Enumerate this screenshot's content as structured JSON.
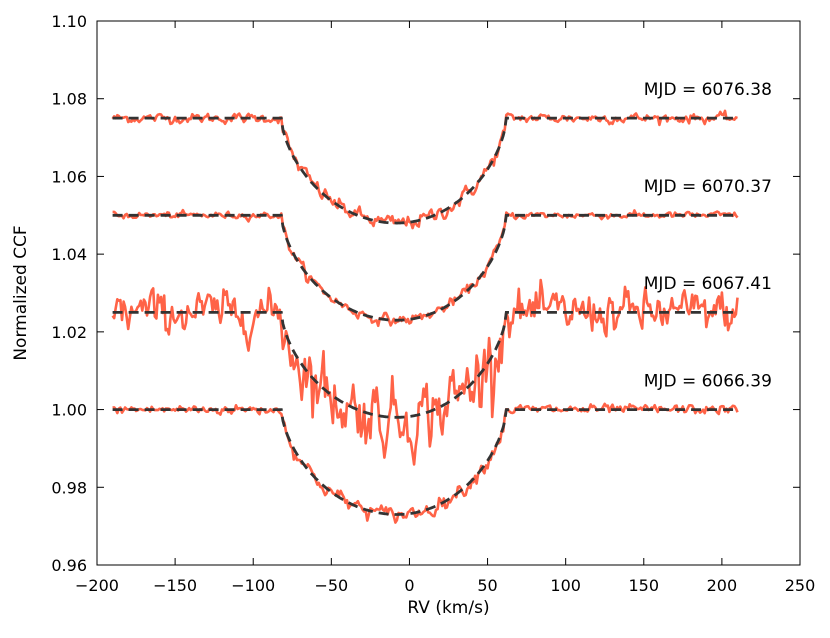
{
  "chart_data": {
    "type": "line",
    "title": "",
    "xlabel": "RV (km/s)",
    "ylabel": "Normalized CCF",
    "xlim": [
      -200,
      250
    ],
    "ylim": [
      0.96,
      1.1
    ],
    "xticks": [
      -200,
      -150,
      -100,
      -50,
      0,
      50,
      100,
      150,
      200,
      250
    ],
    "xtick_labels": [
      "−200",
      "−150",
      "−100",
      "−50",
      "0",
      "50",
      "100",
      "150",
      "200",
      "250"
    ],
    "yticks": [
      0.96,
      0.98,
      1.0,
      1.02,
      1.04,
      1.06,
      1.08,
      1.1
    ],
    "ytick_labels": [
      "0.96",
      "0.98",
      "1.00",
      "1.02",
      "1.04",
      "1.06",
      "1.08",
      "1.10"
    ],
    "colors": {
      "observed": "#ff6347",
      "model": "#333333"
    },
    "x_range": [
      -190,
      210
    ],
    "series": [
      {
        "name": "MJD = 6076.38",
        "baseline": 1.075,
        "depth": 0.027,
        "center": -8,
        "edges": [
          -82,
          62
        ],
        "noise": 0.001,
        "label_x": 150,
        "label_y": 1.081
      },
      {
        "name": "MJD = 6070.37",
        "baseline": 1.05,
        "depth": 0.027,
        "center": -8,
        "edges": [
          -82,
          62
        ],
        "noise": 0.0007,
        "label_x": 150,
        "label_y": 1.056
      },
      {
        "name": "MJD = 6067.41",
        "baseline": 1.025,
        "depth": 0.027,
        "center": -8,
        "edges": [
          -82,
          62
        ],
        "noise": 0.0045,
        "label_x": 150,
        "label_y": 1.031
      },
      {
        "name": "MJD = 6066.39",
        "baseline": 1.0,
        "depth": 0.027,
        "center": -8,
        "edges": [
          -82,
          62
        ],
        "noise": 0.001,
        "label_x": 150,
        "label_y": 1.006
      }
    ]
  }
}
